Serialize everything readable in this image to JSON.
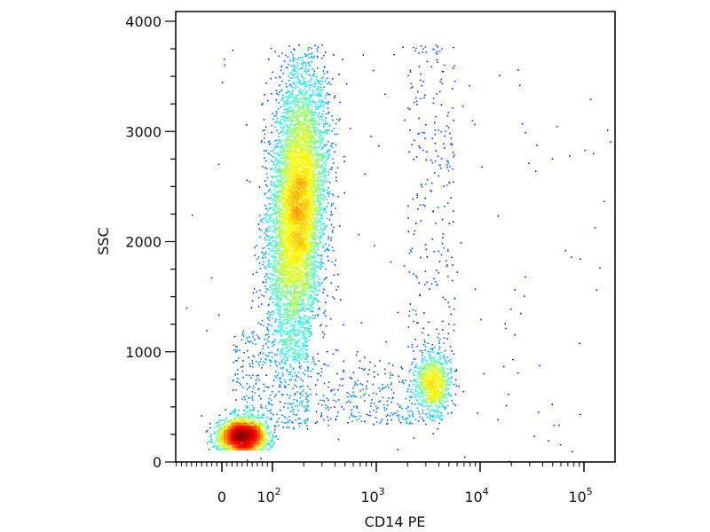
{
  "chart_data": {
    "type": "scatter",
    "subtype": "flow-cytometry-density-dot-plot",
    "xlabel": "CD14 PE",
    "ylabel": "SSC",
    "x_scale": "biexponential (linear near 0, log above 10^2)",
    "y_scale": "linear",
    "ylim": [
      0,
      4096
    ],
    "xlim": [
      -100,
      200000
    ],
    "y_ticks": [
      {
        "value": 0,
        "label": "0"
      },
      {
        "value": 1000,
        "label": "1000"
      },
      {
        "value": 2000,
        "label": "2000"
      },
      {
        "value": 3000,
        "label": "3000"
      },
      {
        "value": 4000,
        "label": "4000"
      }
    ],
    "x_ticks": [
      {
        "value": 0,
        "label": "0",
        "sup": ""
      },
      {
        "value": 100,
        "label": "10",
        "sup": "2"
      },
      {
        "value": 1000,
        "label": "10",
        "sup": "3"
      },
      {
        "value": 10000,
        "label": "10",
        "sup": "4"
      },
      {
        "value": 100000,
        "label": "10",
        "sup": "5"
      }
    ],
    "colormap": "jet density (blue low → red high)",
    "grid": false,
    "legend": "none",
    "populations": [
      {
        "x_center": 40,
        "y_center": 240,
        "x_spread": 25,
        "y_spread": 60,
        "events": 3000,
        "peak_density": "red"
      },
      {
        "x_center": 170,
        "y_center": 2300,
        "x_spread_decades": 0.13,
        "y_spread": 600,
        "y_range": [
          900,
          3800
        ],
        "events": 7000,
        "peak_density": "green-yellow"
      },
      {
        "x_center": 3500,
        "y_center": 720,
        "x_spread_decades": 0.08,
        "y_spread": 130,
        "events": 900,
        "peak_density": "cyan-green"
      }
    ],
    "colors": {
      "axis": "#000000",
      "low": "#00008f",
      "high": "#ff0000"
    }
  }
}
